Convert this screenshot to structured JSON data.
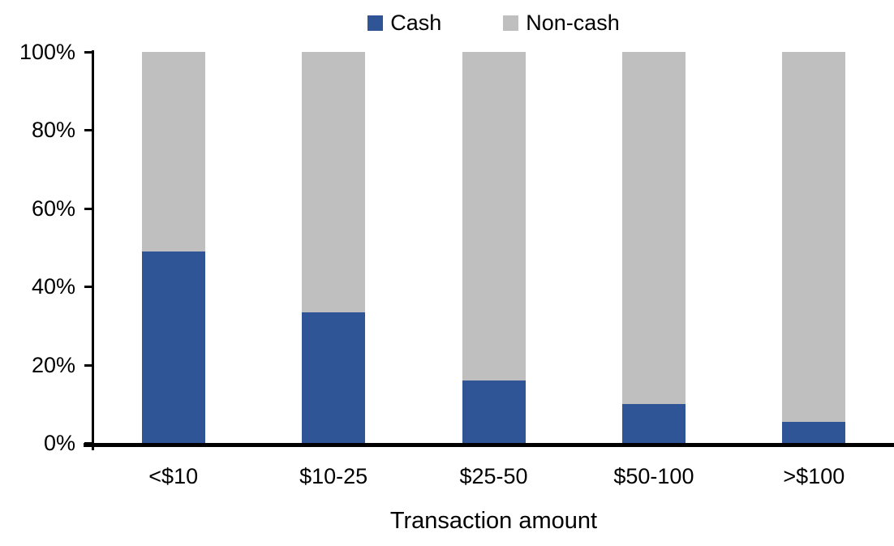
{
  "chart_data": {
    "type": "bar",
    "subtype": "stacked-100-percent",
    "title": "",
    "xlabel": "Transaction amount",
    "ylabel": "",
    "categories": [
      "<$10",
      "$10-25",
      "$25-50",
      "$50-100",
      ">$100"
    ],
    "series": [
      {
        "name": "Cash",
        "color": "#2F5597",
        "values": [
          49,
          33.5,
          16,
          10,
          5.5
        ]
      },
      {
        "name": "Non-cash",
        "color": "#BFBFBF",
        "values": [
          51,
          66.5,
          84,
          90,
          94.5
        ]
      }
    ],
    "ylim": [
      0,
      100
    ],
    "y_tick_values": [
      0,
      20,
      40,
      60,
      80,
      100
    ],
    "y_tick_labels": [
      "0%",
      "20%",
      "40%",
      "60%",
      "80%",
      "100%"
    ],
    "legend_position": "top-center",
    "grid": false,
    "axis_color": "#000000",
    "text_color": "#000000",
    "background_color": "#FFFFFF"
  }
}
